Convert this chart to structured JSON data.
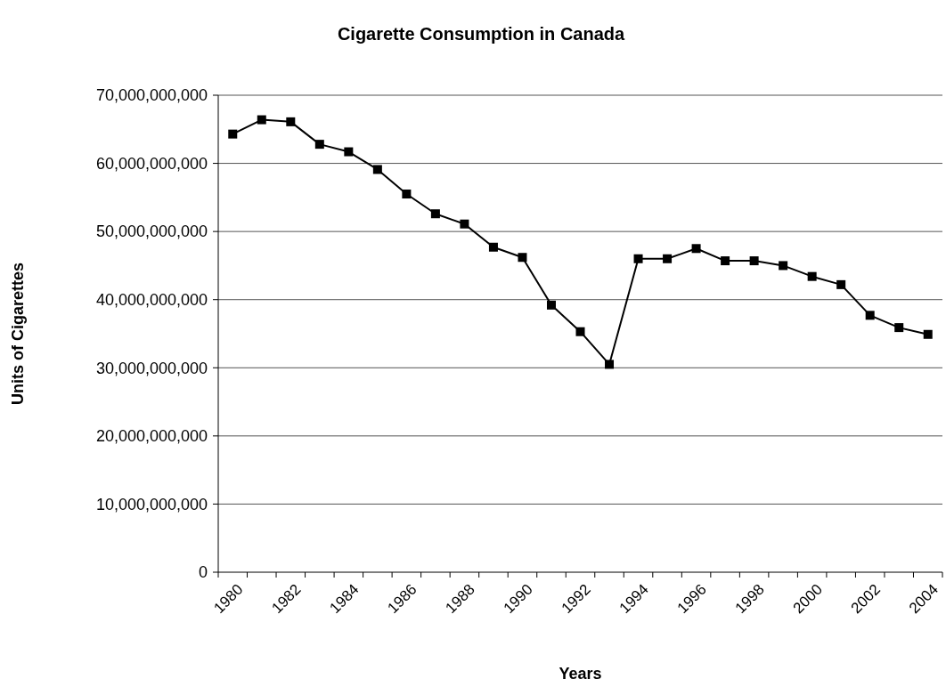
{
  "chart_data": {
    "type": "line",
    "title": "Cigarette Consumption in Canada",
    "xlabel": "Years",
    "ylabel": "Units of Cigarettes",
    "categories": [
      "1980",
      null,
      "1982",
      null,
      "1984",
      null,
      "1986",
      null,
      "1988",
      null,
      "1990",
      null,
      "1992",
      null,
      "1994",
      null,
      "1996",
      null,
      "1998",
      null,
      "2000",
      null,
      "2002",
      null,
      "2004"
    ],
    "series": [
      {
        "color": "#000000",
        "values": [
          64300000000,
          66400000000,
          66100000000,
          62800000000,
          61700000000,
          59100000000,
          55500000000,
          52600000000,
          51100000000,
          47700000000,
          46200000000,
          39200000000,
          35300000000,
          30500000000,
          46000000000,
          46000000000,
          47500000000,
          45700000000,
          45700000000,
          45000000000,
          43400000000,
          42200000000,
          37700000000,
          35900000000,
          34900000000
        ]
      }
    ],
    "ylim": [
      0,
      70000000000
    ],
    "yticks": [
      0,
      {
        "value": 10000000000,
        "label": "10,000,000,000"
      },
      {
        "value": 20000000000,
        "label": "20,000,000,000"
      },
      {
        "value": 30000000000,
        "label": "30,000,000,000"
      },
      {
        "value": 40000000000,
        "label": "40,000,000,000"
      },
      {
        "value": 50000000000,
        "label": "50,000,000,000"
      },
      {
        "value": 60000000000,
        "label": "60,000,000,000"
      },
      {
        "value": 70000000000,
        "label": "70,000,000,000"
      }
    ],
    "grid": "y",
    "marker": "square",
    "line_style": "solid"
  }
}
